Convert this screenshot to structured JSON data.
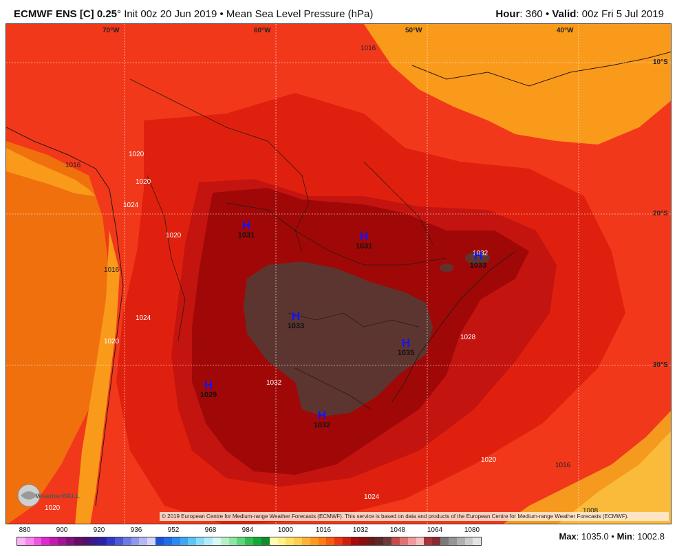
{
  "header": {
    "model": "ECMWF ENS [C] 0.25",
    "degree": "°",
    "init": "Init 00z 20 Jun 2019",
    "bullet": "•",
    "field": "Mean Sea Level Pressure (hPa)",
    "hour_label": "Hour",
    "hour_value": ": 360",
    "valid_label": "Valid",
    "valid_value": ": 00z Fri 5 Jul 2019"
  },
  "map": {
    "longitudes": [
      "70°W",
      "60°W",
      "50°W",
      "40°W"
    ],
    "latitudes": [
      "10°S",
      "20°S",
      "30°S"
    ],
    "highs": [
      {
        "letter": "H",
        "value": "1031"
      },
      {
        "letter": "H",
        "value": "1031"
      },
      {
        "letter": "H",
        "value": "1033"
      },
      {
        "letter": "H",
        "value": "1033"
      },
      {
        "letter": "H",
        "value": "1035"
      },
      {
        "letter": "H",
        "value": "1029"
      },
      {
        "letter": "H",
        "value": "1032"
      }
    ],
    "contour_labels": [
      "1016",
      "1016",
      "1020",
      "1020",
      "1024",
      "1020",
      "1016",
      "1024",
      "1020",
      "1032",
      "1032",
      "1028",
      "1020",
      "1016",
      "1024",
      "1008",
      "1020"
    ],
    "logo": "WeatherBELL",
    "copyright": "© 2019 European Centre for Medium-range Weather Forecasts (ECMWF). This service is based on data and products of the European Centre for Medium-range Weather Forecasts (ECMWF)."
  },
  "colorbar": {
    "ticks": [
      "880",
      "900",
      "920",
      "936",
      "952",
      "968",
      "984",
      "1000",
      "1016",
      "1032",
      "1048",
      "1064",
      "1080"
    ],
    "colors": [
      "#fbb3f4",
      "#f786ee",
      "#ee55e3",
      "#dd2bd0",
      "#c21bb4",
      "#a21496",
      "#82107c",
      "#660d64",
      "#4f1070",
      "#3a1a8c",
      "#2b22a8",
      "#2f3bc6",
      "#4d58d8",
      "#6f79e4",
      "#9198ec",
      "#b4b7f2",
      "#d4d6f8",
      "#1b54d8",
      "#1f6ee8",
      "#2a8af0",
      "#3fa6f4",
      "#5ec4f6",
      "#87dcf8",
      "#b3ecf8",
      "#d9f7f7",
      "#b6f0c4",
      "#8ee6a0",
      "#5ed67a",
      "#30c052",
      "#14a83a",
      "#0e8c2e",
      "#fffbb0",
      "#fff08a",
      "#ffe066",
      "#ffcf4a",
      "#ffb238",
      "#ff9a20",
      "#ff7c12",
      "#f85a10",
      "#e8380e",
      "#cc1f0c",
      "#a80c0c",
      "#881010",
      "#6b1a18",
      "#5c2a26",
      "#6b3a3a",
      "#c84a4a",
      "#e07272",
      "#ee9a9a",
      "#f6bebe",
      "#a4343a",
      "#8a2a30",
      "#7a7a7a",
      "#959595",
      "#b0b0b0",
      "#cacaca",
      "#e2e2e2"
    ]
  },
  "stats": {
    "max_label": "Max",
    "max_value": ": 1035.0",
    "bullet": "•",
    "min_label": "Min",
    "min_value": ": 1002.8"
  }
}
